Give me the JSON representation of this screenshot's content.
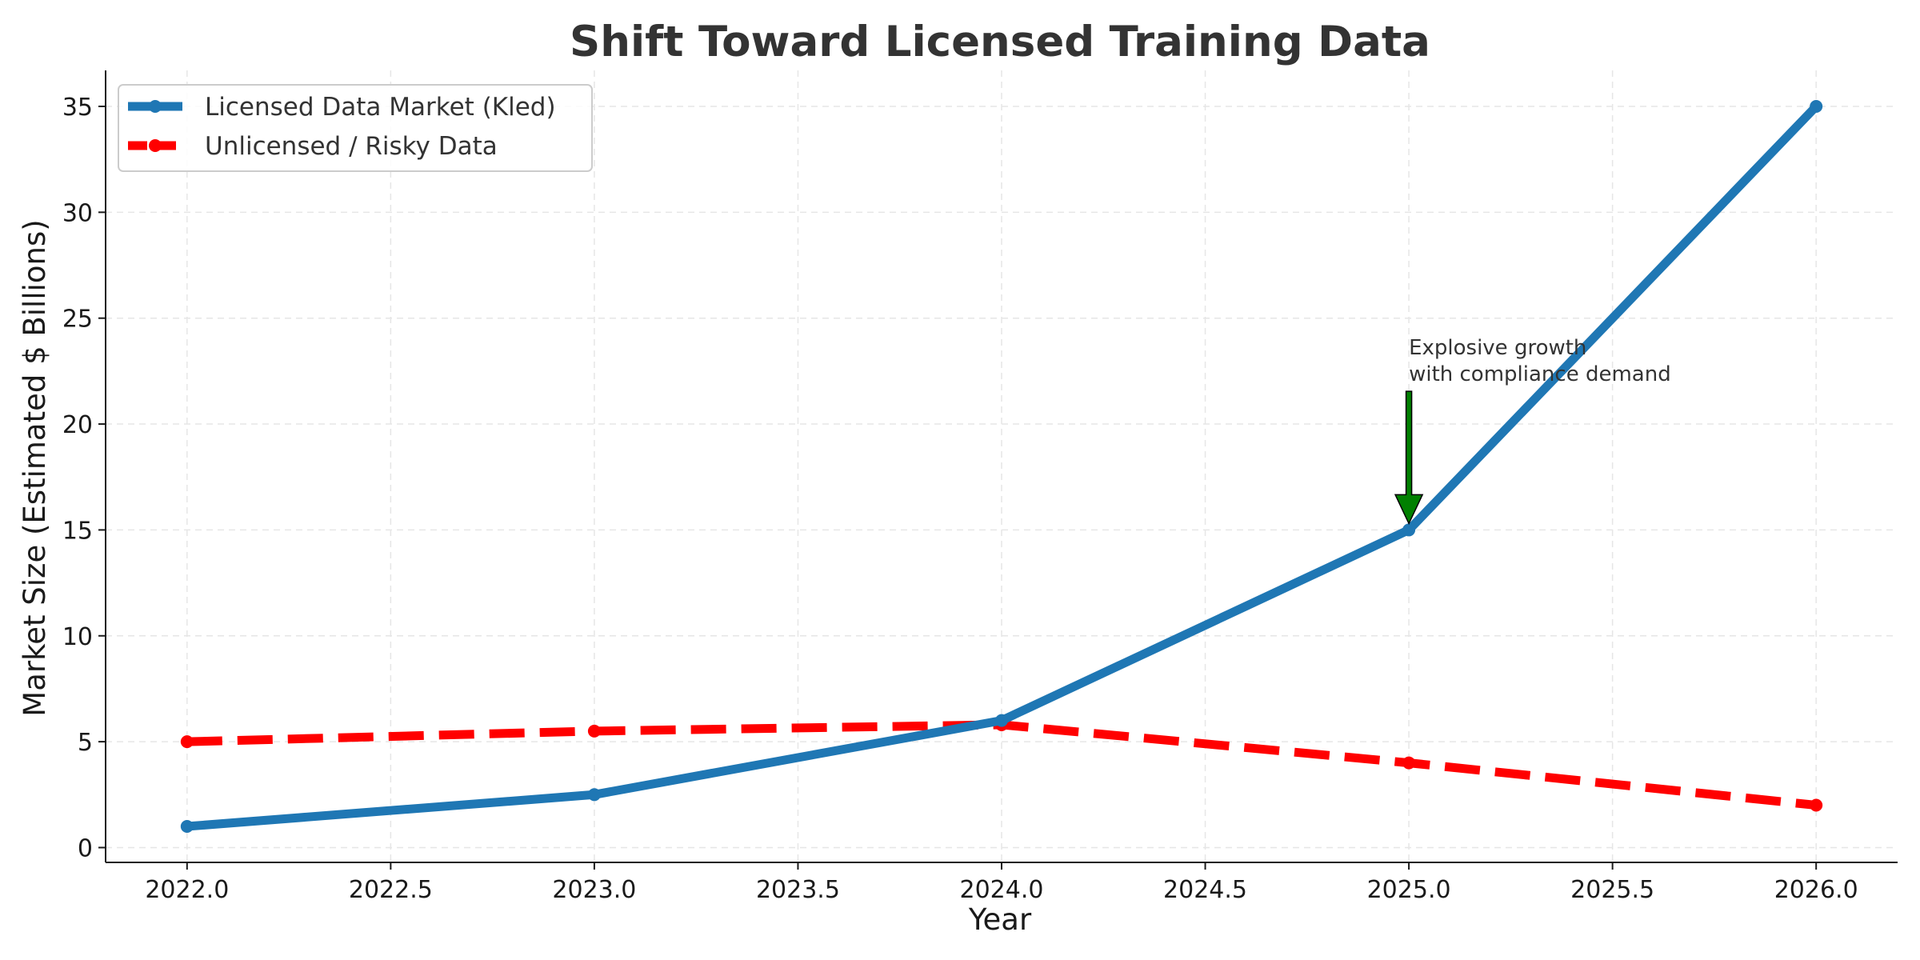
{
  "chart_data": {
    "type": "line",
    "title": "Shift Toward Licensed Training Data",
    "xlabel": "Year",
    "ylabel": "Market Size (Estimated $ Billions)",
    "xlim": [
      2021.8,
      2026.2
    ],
    "ylim": [
      -0.7,
      36.7
    ],
    "x_ticks": [
      "2022.0",
      "2022.5",
      "2023.0",
      "2023.5",
      "2024.0",
      "2024.5",
      "2025.0",
      "2025.5",
      "2026.0"
    ],
    "y_ticks": [
      "0",
      "5",
      "10",
      "15",
      "20",
      "25",
      "30",
      "35"
    ],
    "grid": true,
    "legend_position": "top-left",
    "series": [
      {
        "name": "Licensed Data Market (Kled)",
        "color": "#1f77b4",
        "style": "solid",
        "x": [
          2022,
          2023,
          2024,
          2025,
          2026
        ],
        "values": [
          1,
          2.5,
          6,
          15,
          35
        ]
      },
      {
        "name": "Unlicensed / Risky Data",
        "color": "#ff0000",
        "style": "dashed",
        "x": [
          2022,
          2023,
          2024,
          2025,
          2026
        ],
        "values": [
          5,
          5.5,
          5.8,
          4,
          2
        ]
      }
    ],
    "annotations": [
      {
        "lines": [
          "Explosive growth",
          "with compliance demand"
        ],
        "point_x": 2025,
        "point_y": 15,
        "text_x": 2025,
        "text_y": 22,
        "arrow_color": "#008000"
      }
    ]
  }
}
